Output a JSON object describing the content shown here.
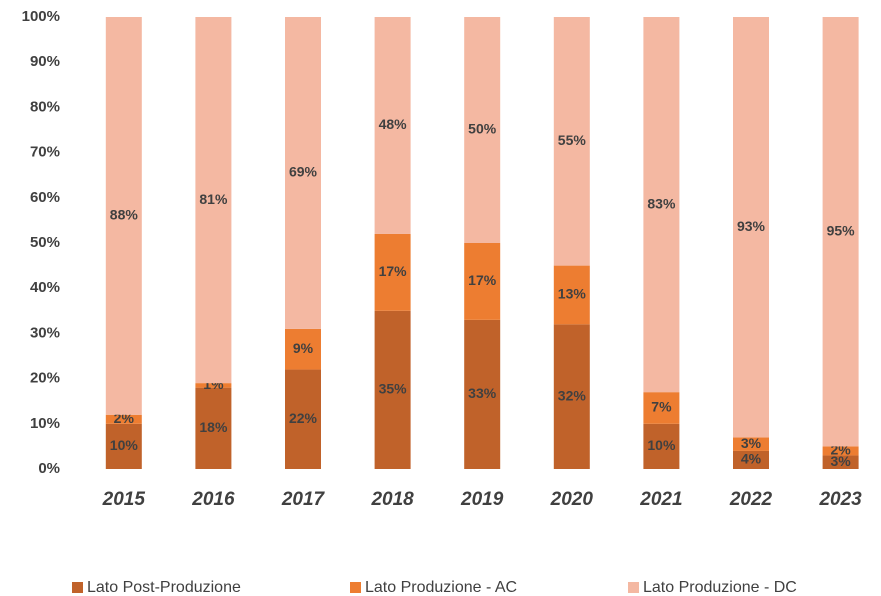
{
  "chart_data": {
    "type": "stacked_bar",
    "categories": [
      "2015",
      "2016",
      "2017",
      "2018",
      "2019",
      "2020",
      "2021",
      "2022",
      "2023"
    ],
    "series": [
      {
        "name": "Lato Post-Produzione",
        "color": "#c0622a",
        "values": [
          10,
          18,
          22,
          35,
          33,
          32,
          10,
          4,
          3
        ],
        "value_labels": [
          "10%",
          "18%",
          "22%",
          "35%",
          "33%",
          "32%",
          "10%",
          "4%",
          "3%"
        ]
      },
      {
        "name": "Lato Produzione - AC",
        "color": "#ed7d31",
        "values": [
          2,
          1,
          9,
          17,
          17,
          13,
          7,
          3,
          2
        ],
        "value_labels": [
          "2%",
          "1%",
          "9%",
          "17%",
          "17%",
          "13%",
          "7%",
          "3%",
          "2%"
        ]
      },
      {
        "name": "Lato Produzione - DC",
        "color": "#f4b8a2",
        "values": [
          88,
          81,
          69,
          48,
          50,
          55,
          83,
          93,
          95
        ],
        "value_labels": [
          "88%",
          "81%",
          "69%",
          "48%",
          "50%",
          "55%",
          "83%",
          "93%",
          "95%"
        ]
      }
    ],
    "ylim": [
      0,
      100
    ],
    "yticks": [
      {
        "value": 0,
        "label": "0%"
      },
      {
        "value": 10,
        "label": "10%"
      },
      {
        "value": 20,
        "label": "20%"
      },
      {
        "value": 30,
        "label": "30%"
      },
      {
        "value": 40,
        "label": "40%"
      },
      {
        "value": 50,
        "label": "50%"
      },
      {
        "value": 60,
        "label": "60%"
      },
      {
        "value": 70,
        "label": "70%"
      },
      {
        "value": 80,
        "label": "80%"
      },
      {
        "value": 90,
        "label": "90%"
      },
      {
        "value": 100,
        "label": "100%"
      }
    ],
    "grid": false,
    "legend": "bottom"
  }
}
